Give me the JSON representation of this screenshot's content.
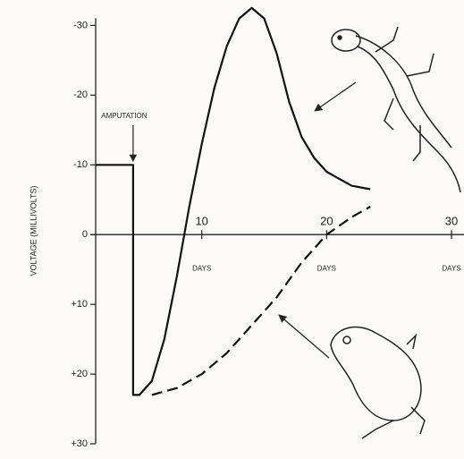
{
  "chart_data": {
    "type": "line",
    "y_label": "VOLTAGE (MILLIVOLTS)",
    "annotation": "AMPUTATION",
    "annotation_x": 4.5,
    "x_tick_unit": "DAYS",
    "xlim": [
      1.5,
      30
    ],
    "xticks": [
      10,
      20,
      30
    ],
    "ylim": [
      -33,
      30
    ],
    "y_inverted": true,
    "yticks": [
      -30,
      -20,
      -10,
      0,
      {
        "value": 10,
        "label": "+10"
      },
      {
        "value": 20,
        "label": "+20"
      },
      {
        "value": 30,
        "label": "+30"
      }
    ],
    "series": [
      {
        "color": "#111111",
        "dash": false,
        "x": [
          1.5,
          4.5,
          4.5,
          5,
          6,
          7,
          8,
          9,
          10,
          11,
          12,
          13,
          14,
          15,
          16,
          17,
          18,
          19,
          20,
          21,
          22,
          23.5
        ],
        "values": [
          -10,
          -10,
          23,
          23,
          21,
          15,
          6,
          -4,
          -13,
          -21,
          -27,
          -31,
          -32.5,
          -31,
          -26,
          -19,
          -14,
          -11,
          -9,
          -8,
          -7,
          -6.5
        ]
      },
      {
        "color": "#111111",
        "dash": true,
        "x": [
          6,
          8,
          10,
          12,
          14,
          16,
          18,
          20,
          22,
          23.5
        ],
        "values": [
          23,
          22,
          20,
          17,
          13,
          9,
          4,
          0,
          -2.5,
          -4
        ]
      }
    ]
  }
}
